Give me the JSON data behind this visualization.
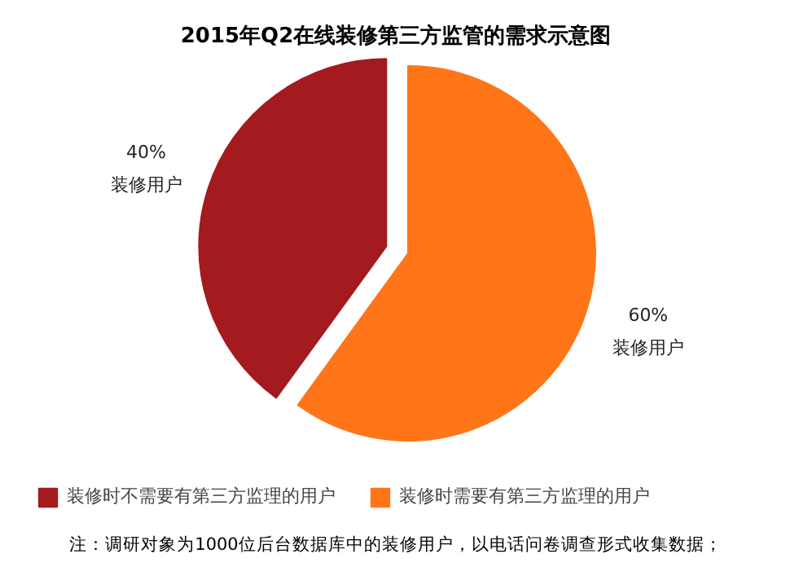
{
  "chart_data": {
    "type": "pie",
    "title": "2015年Q2在线装修第三方监管的需求示意图",
    "categories": [
      "装修时不需要有第三方监理的用户",
      "装修时需要有第三方监理的用户"
    ],
    "values": [
      40,
      60
    ],
    "colors": [
      "#a31b1f",
      "#ff7518"
    ],
    "value_labels": [
      "40%\n装修用户",
      "60%\n装修用户"
    ],
    "legend": "bottom",
    "annotations": [
      "注：调研对象为1000位后台数据库中的装修用户，以电话问卷调查形式收集数据；"
    ]
  }
}
